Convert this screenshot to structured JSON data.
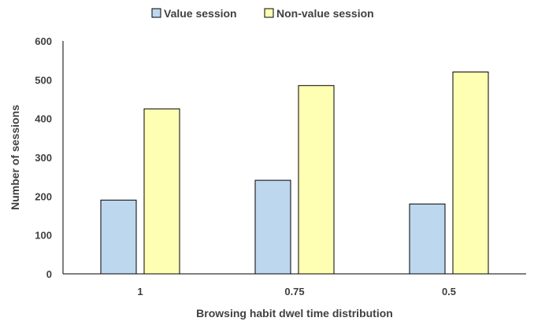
{
  "chart_data": {
    "type": "bar",
    "title": "",
    "xlabel": "Browsing habit dwel time distribution",
    "ylabel": "Number of sessions",
    "categories": [
      "1",
      "0.75",
      "0.5"
    ],
    "series": [
      {
        "name": "Value session",
        "values": [
          190,
          241,
          180
        ],
        "color": "#bdd7ee"
      },
      {
        "name": "Non-value session",
        "values": [
          425,
          485,
          520
        ],
        "color": "#ffffb3"
      }
    ],
    "ylim": [
      0,
      600
    ],
    "yticks": [
      0,
      100,
      200,
      300,
      400,
      500,
      600
    ],
    "grid": false,
    "legend_position": "top-center",
    "bar_outline_color": "#000000"
  }
}
